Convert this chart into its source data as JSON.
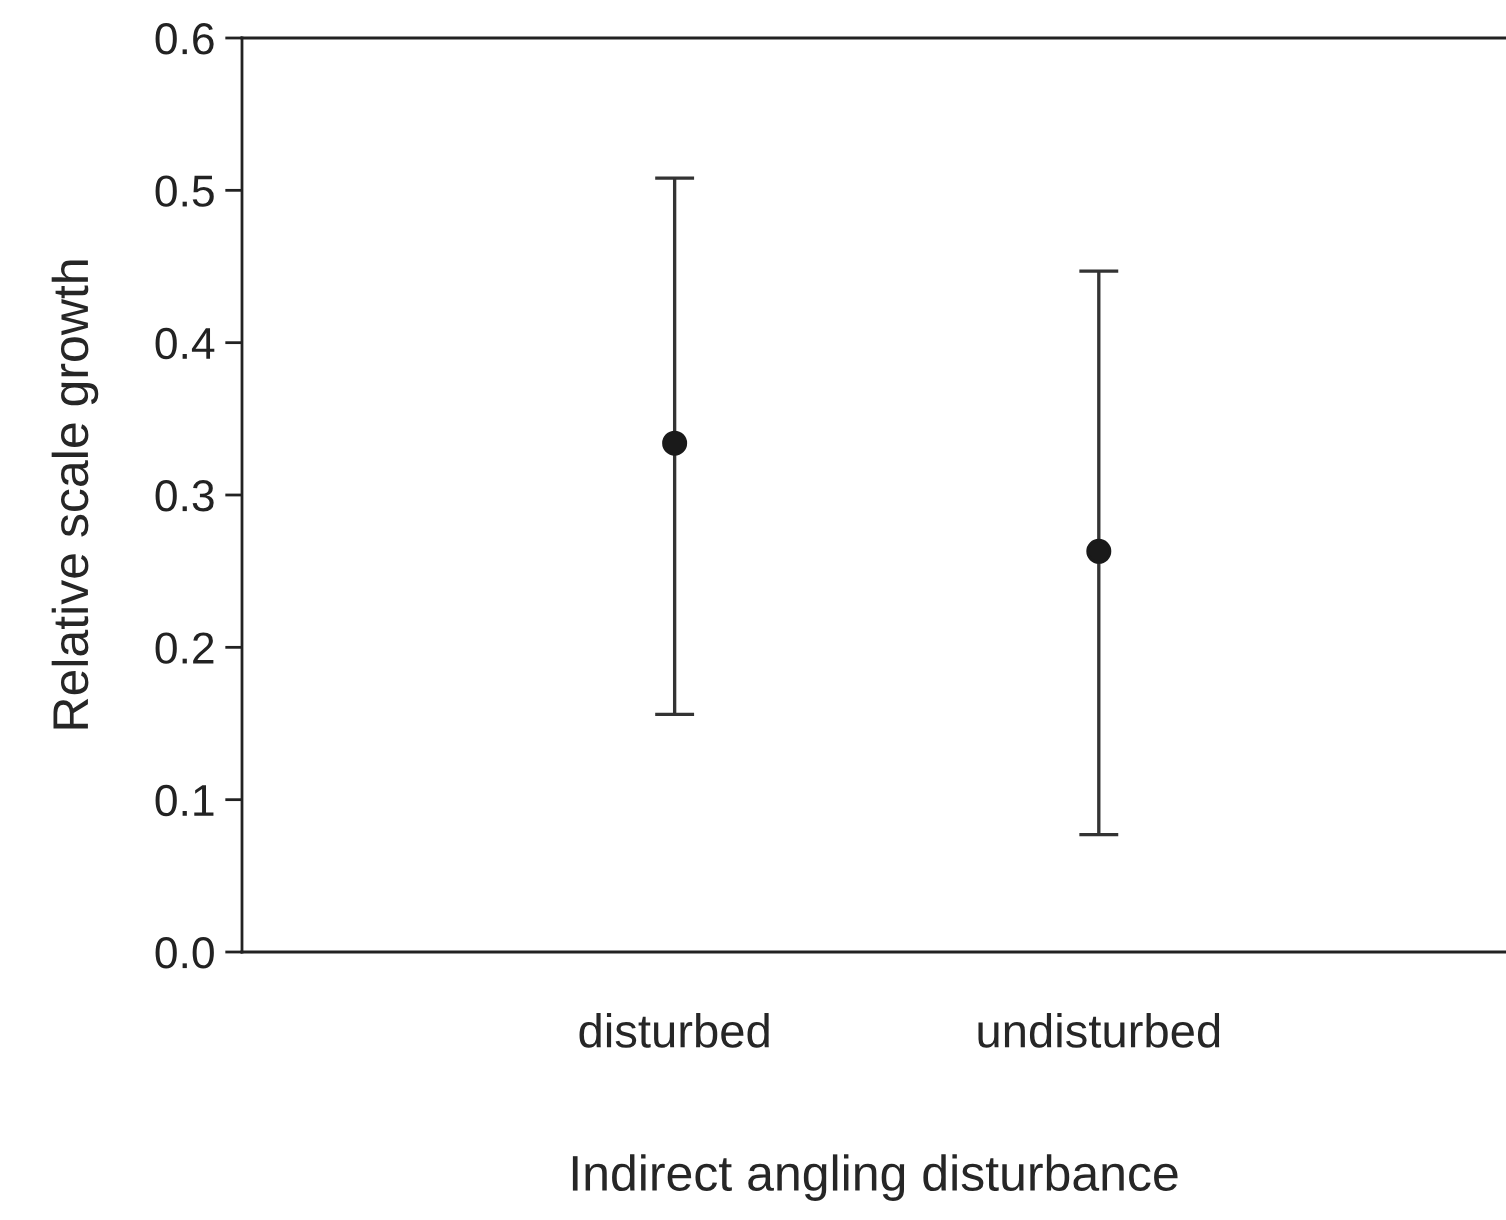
{
  "chart_data": {
    "type": "scatter",
    "xlabel": "Indirect angling disturbance",
    "ylabel": "Relative scale growth",
    "categories": [
      "disturbed",
      "undisturbed"
    ],
    "series": [
      {
        "color": "#1a1a1a",
        "values": [
          0.334,
          0.263
        ],
        "errors": [
          [
            0.156,
            0.508
          ],
          [
            0.077,
            0.447
          ]
        ]
      }
    ],
    "ylim": [
      0,
      0.6
    ],
    "yticks": [
      {
        "value": 0,
        "label": "0.0"
      },
      0.1,
      0.2,
      0.3,
      0.4,
      0.5,
      0.6
    ],
    "marker": "circle",
    "grid": false,
    "legend": false
  }
}
